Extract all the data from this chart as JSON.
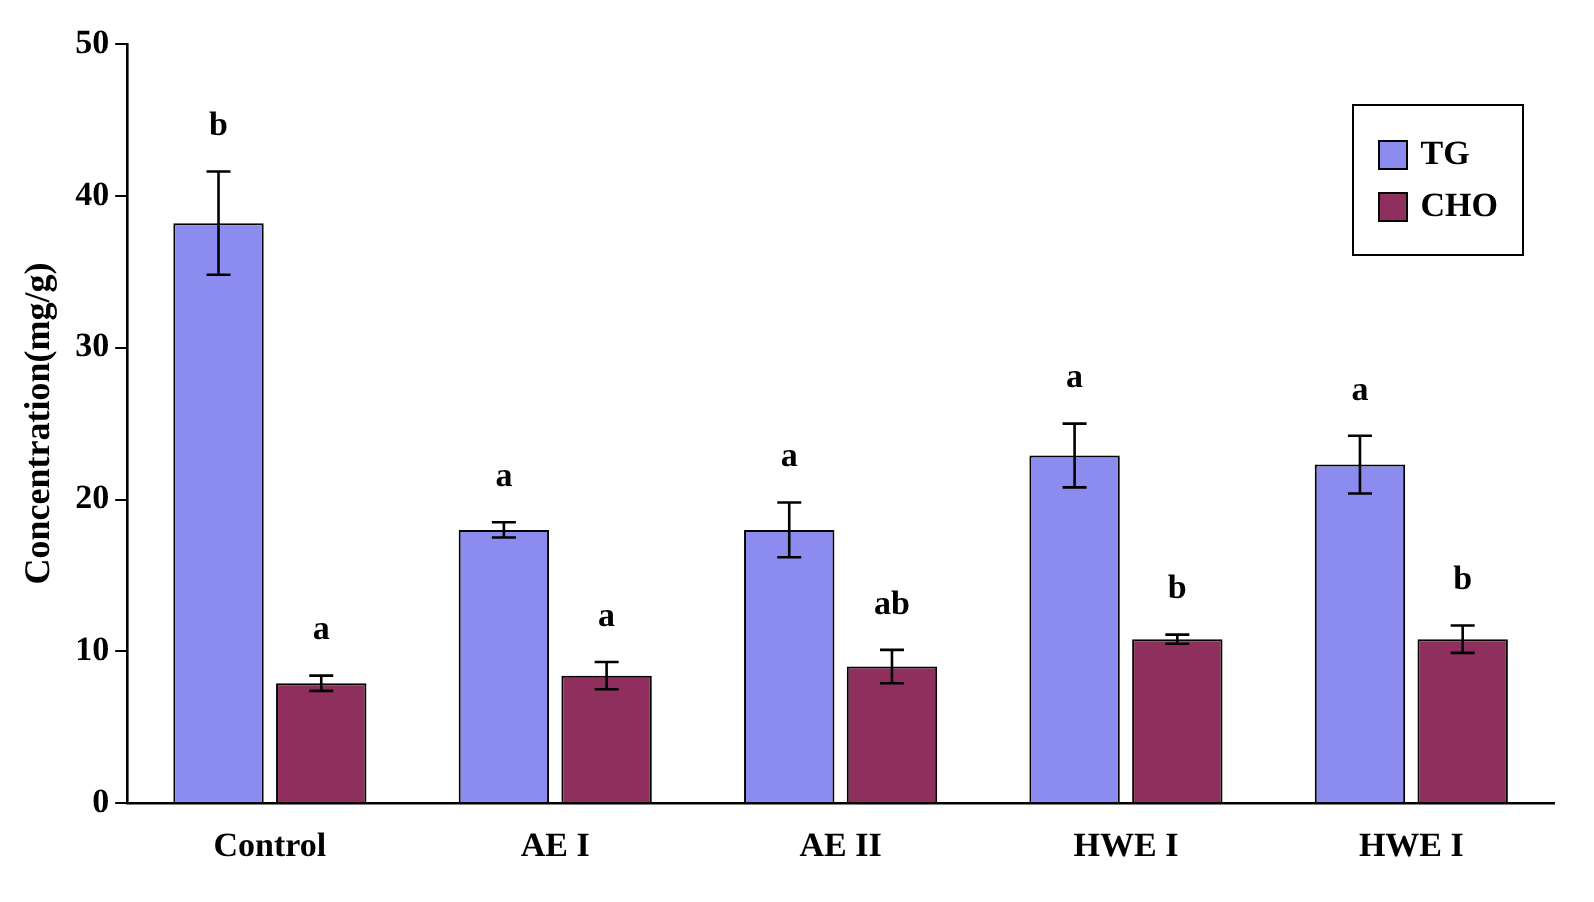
{
  "chart_data": {
    "type": "bar",
    "ylabel": "Concentration(mg/g)",
    "categories": [
      "Control",
      "AE I",
      "AE II",
      "HWE I",
      "HWE I"
    ],
    "series": [
      {
        "name": "TG",
        "color": "#8c8cf0",
        "values": [
          38.2,
          18.0,
          18.0,
          22.9,
          22.3
        ],
        "errors": [
          3.4,
          0.5,
          1.8,
          2.1,
          1.9
        ],
        "value_labels": [
          "b",
          "a",
          "a",
          "a",
          "a"
        ]
      },
      {
        "name": "CHO",
        "color": "#8e2f5e",
        "values": [
          7.9,
          8.4,
          9.0,
          10.8,
          10.8
        ],
        "errors": [
          0.5,
          0.9,
          1.1,
          0.3,
          0.9
        ],
        "value_labels": [
          "a",
          "a",
          "ab",
          "b",
          "b"
        ]
      }
    ],
    "ylim": [
      0,
      50
    ],
    "yticks": [
      0,
      10,
      20,
      30,
      40,
      50
    ],
    "grid": false,
    "legend": "top right"
  }
}
